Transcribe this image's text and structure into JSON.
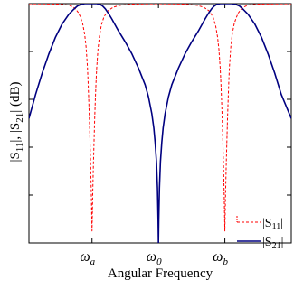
{
  "chart_data": {
    "type": "line",
    "xlabel": "Angular Frequency",
    "ylabel_parts": {
      "bar_open_1": "|",
      "s1": "S",
      "s1_sub": "11",
      "bar_close_1": "|",
      "comma": ", ",
      "bar_open_2": "|",
      "s2": "S",
      "s2_sub": "21",
      "bar_close_2": "|",
      "unit": " (dB)"
    },
    "x_ticks": [
      {
        "x": -1,
        "symbol": "ω",
        "sub": "a"
      },
      {
        "x": 0,
        "symbol": "ω",
        "sub": "0"
      },
      {
        "x": 1,
        "symbol": "ω",
        "sub": "b"
      }
    ],
    "xlim": [
      -1.95,
      2.0
    ],
    "ylim": [
      -100,
      0
    ],
    "y_tick_values": [
      -80,
      -60,
      -40,
      -20
    ],
    "grid": false,
    "legend_position": "bottom-right",
    "series": [
      {
        "key": "s11",
        "name_parts": {
          "open": "|S",
          "sub": "11",
          "close": "|"
        },
        "color": "#ff0000",
        "dash": "3,2",
        "x": [
          -1.95,
          -1.5,
          -1.35,
          -1.28,
          -1.24,
          -1.2,
          -1.17,
          -1.14,
          -1.11,
          -1.09,
          -1.07,
          -1.06,
          -1.05,
          -1.04,
          -1.03,
          -1.02,
          -1.01,
          -1.0,
          -0.99,
          -0.98,
          -0.97,
          -0.96,
          -0.95,
          -0.94,
          -0.93,
          -0.91,
          -0.89,
          -0.86,
          -0.82,
          -0.76,
          -0.68,
          -0.58,
          -0.4,
          0.0,
          0.4,
          0.58,
          0.68,
          0.76,
          0.82,
          0.86,
          0.89,
          0.91,
          0.93,
          0.94,
          0.95,
          0.96,
          0.97,
          0.98,
          0.99,
          1.0,
          1.01,
          1.02,
          1.03,
          1.04,
          1.05,
          1.06,
          1.07,
          1.09,
          1.11,
          1.14,
          1.17,
          1.2,
          1.24,
          1.28,
          1.35,
          1.5,
          2.0
        ],
        "y": [
          0,
          -0.2,
          -0.6,
          -1.5,
          -2.5,
          -4,
          -6,
          -8.5,
          -13,
          -18,
          -26,
          -32,
          -40,
          -48,
          -58,
          -68,
          -80,
          -95,
          -80,
          -68,
          -58,
          -48,
          -40,
          -33,
          -27,
          -19,
          -14,
          -9,
          -5.5,
          -3,
          -1.5,
          -0.7,
          -0.2,
          0,
          -0.2,
          -0.7,
          -1.5,
          -3,
          -5.5,
          -9,
          -14,
          -19,
          -27,
          -33,
          -40,
          -48,
          -58,
          -68,
          -80,
          -95,
          -80,
          -68,
          -58,
          -48,
          -40,
          -32,
          -26,
          -18,
          -13,
          -8.5,
          -6,
          -4,
          -2.5,
          -1.5,
          -0.6,
          -0.2,
          0
        ]
      },
      {
        "key": "s21",
        "name_parts": {
          "open": "|S",
          "sub": "21",
          "close": "|"
        },
        "color": "#000080",
        "dash": "",
        "x": [
          -1.95,
          -1.85,
          -1.75,
          -1.65,
          -1.55,
          -1.45,
          -1.35,
          -1.28,
          -1.22,
          -1.16,
          -1.11,
          -1.06,
          -1.02,
          -1.0,
          -0.97,
          -0.93,
          -0.88,
          -0.84,
          -0.8,
          -0.75,
          -0.7,
          -0.65,
          -0.6,
          -0.5,
          -0.4,
          -0.3,
          -0.2,
          -0.15,
          -0.1,
          -0.07,
          -0.05,
          -0.03,
          -0.015,
          -0.005,
          0.0,
          0.005,
          0.015,
          0.03,
          0.05,
          0.07,
          0.1,
          0.15,
          0.2,
          0.3,
          0.4,
          0.5,
          0.6,
          0.65,
          0.7,
          0.75,
          0.8,
          0.84,
          0.88,
          0.93,
          0.97,
          1.0,
          1.02,
          1.06,
          1.11,
          1.16,
          1.22,
          1.28,
          1.35,
          1.45,
          1.55,
          1.65,
          1.75,
          1.85,
          2.0
        ],
        "y": [
          -48,
          -38,
          -29,
          -21,
          -14,
          -8.5,
          -4.5,
          -2.5,
          -1.0,
          -0.3,
          0,
          0,
          0,
          0,
          0,
          0,
          -0.3,
          -1.0,
          -2.2,
          -4.2,
          -6.5,
          -9,
          -11.5,
          -16,
          -21,
          -27,
          -34,
          -39,
          -46,
          -52,
          -58,
          -66,
          -77,
          -90,
          -100,
          -90,
          -77,
          -66,
          -58,
          -52,
          -46,
          -39,
          -34,
          -27,
          -21,
          -16,
          -11.5,
          -9,
          -6.5,
          -4.2,
          -2.2,
          -1.0,
          -0.3,
          0,
          0,
          0,
          0,
          0,
          0,
          -0.3,
          -1.0,
          -2.5,
          -4.5,
          -8.5,
          -14,
          -21,
          -29,
          -38,
          -48
        ]
      }
    ]
  }
}
